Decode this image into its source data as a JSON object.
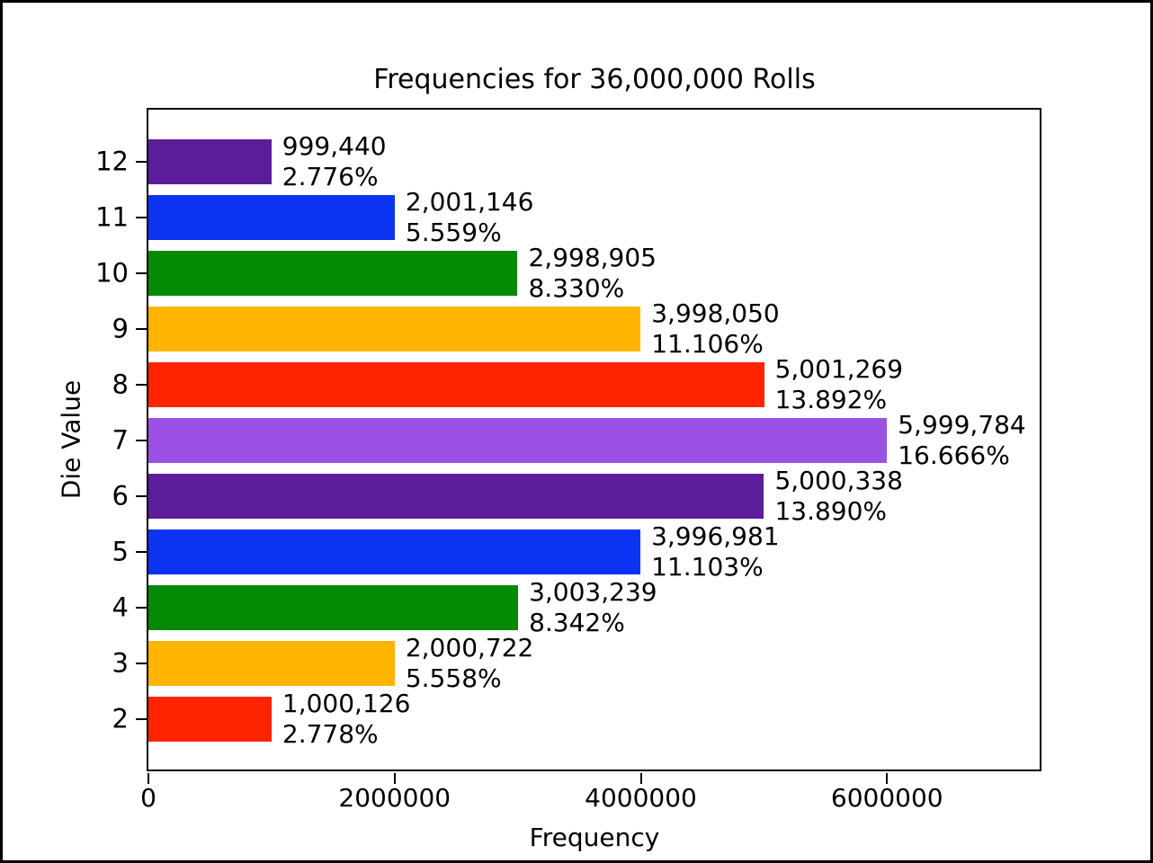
{
  "chart_data": {
    "type": "bar",
    "orientation": "horizontal",
    "title": "Frequencies for 36,000,000 Rolls",
    "xlabel": "Frequency",
    "ylabel": "Die Value",
    "total_rolls": 36000000,
    "xlim": [
      0,
      7240000
    ],
    "grid": false,
    "legend": null,
    "x_ticks": [
      {
        "value": 0,
        "label": "0"
      },
      {
        "value": 2000000,
        "label": "2000000"
      },
      {
        "value": 4000000,
        "label": "4000000"
      },
      {
        "value": 6000000,
        "label": "6000000"
      }
    ],
    "bars": [
      {
        "category": "12",
        "value": 999440,
        "value_label": "999,440",
        "pct_label": "2.776%",
        "color": "#5c1d9b"
      },
      {
        "category": "11",
        "value": 2001146,
        "value_label": "2,001,146",
        "pct_label": "5.559%",
        "color": "#0d33f2"
      },
      {
        "category": "10",
        "value": 2998905,
        "value_label": "2,998,905",
        "pct_label": "8.330%",
        "color": "#048a04"
      },
      {
        "category": "9",
        "value": 3998050,
        "value_label": "3,998,050",
        "pct_label": "11.106%",
        "color": "#ffb400"
      },
      {
        "category": "8",
        "value": 5001269,
        "value_label": "5,001,269",
        "pct_label": "13.892%",
        "color": "#fe2400"
      },
      {
        "category": "7",
        "value": 5999784,
        "value_label": "5,999,784",
        "pct_label": "16.666%",
        "color": "#9d51e4"
      },
      {
        "category": "6",
        "value": 5000338,
        "value_label": "5,000,338",
        "pct_label": "13.890%",
        "color": "#5c1d9b"
      },
      {
        "category": "5",
        "value": 3996981,
        "value_label": "3,996,981",
        "pct_label": "11.103%",
        "color": "#0d33f2"
      },
      {
        "category": "4",
        "value": 3003239,
        "value_label": "3,003,239",
        "pct_label": "8.342%",
        "color": "#048a04"
      },
      {
        "category": "3",
        "value": 2000722,
        "value_label": "2,000,722",
        "pct_label": "5.558%",
        "color": "#ffb400"
      },
      {
        "category": "2",
        "value": 1000126,
        "value_label": "1,000,126",
        "pct_label": "2.778%",
        "color": "#fe2400"
      }
    ]
  }
}
